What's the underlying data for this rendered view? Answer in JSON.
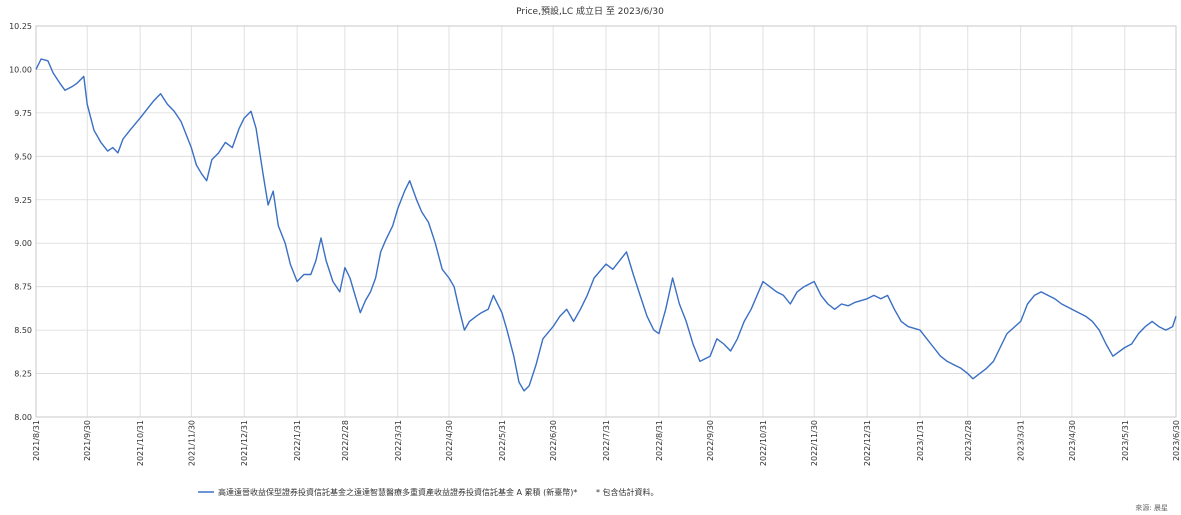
{
  "chart_data": {
    "type": "line",
    "title": "Price,預設,LC 成立日 至 2023/6/30",
    "xlabel": "",
    "ylabel": "",
    "ylim": [
      8.0,
      10.25
    ],
    "yticks": [
      "8.00",
      "8.25",
      "8.50",
      "8.75",
      "9.00",
      "9.25",
      "9.50",
      "9.75",
      "10.00",
      "10.25"
    ],
    "xlim": [
      "2021/8/31",
      "2023/6/30"
    ],
    "xticks": [
      "2021/8/31",
      "2021/9/30",
      "2021/10/31",
      "2021/11/30",
      "2021/12/31",
      "2022/1/31",
      "2022/2/28",
      "2022/3/31",
      "2022/4/30",
      "2022/5/31",
      "2022/6/30",
      "2022/7/31",
      "2022/8/31",
      "2022/9/30",
      "2022/10/31",
      "2022/11/30",
      "2022/12/31",
      "2023/1/31",
      "2023/2/28",
      "2023/3/31",
      "2023/4/30",
      "2023/5/31",
      "2023/6/30"
    ],
    "grid": true,
    "legend_position": "bottom",
    "series": [
      {
        "name": "高達遠晉收益保型證券投資信託基金之遠達智慧醫療多重資產收益證券投資信託基金 A 累積 (新臺幣)*",
        "color": "#3a6fc4",
        "points": [
          [
            "2021/8/31",
            10.0
          ],
          [
            "2021/9/3",
            10.06
          ],
          [
            "2021/9/7",
            10.05
          ],
          [
            "2021/9/10",
            9.98
          ],
          [
            "2021/9/14",
            9.92
          ],
          [
            "2021/9/17",
            9.88
          ],
          [
            "2021/9/21",
            9.9
          ],
          [
            "2021/9/24",
            9.92
          ],
          [
            "2021/9/28",
            9.96
          ],
          [
            "2021/9/30",
            9.8
          ],
          [
            "2021/10/4",
            9.65
          ],
          [
            "2021/10/8",
            9.58
          ],
          [
            "2021/10/12",
            9.53
          ],
          [
            "2021/10/15",
            9.55
          ],
          [
            "2021/10/18",
            9.52
          ],
          [
            "2021/10/21",
            9.6
          ],
          [
            "2021/10/25",
            9.65
          ],
          [
            "2021/10/31",
            9.72
          ],
          [
            "2021/11/4",
            9.77
          ],
          [
            "2021/11/8",
            9.82
          ],
          [
            "2021/11/12",
            9.86
          ],
          [
            "2021/11/16",
            9.8
          ],
          [
            "2021/11/20",
            9.76
          ],
          [
            "2021/11/24",
            9.7
          ],
          [
            "2021/11/30",
            9.55
          ],
          [
            "2021/12/3",
            9.45
          ],
          [
            "2021/12/6",
            9.4
          ],
          [
            "2021/12/9",
            9.36
          ],
          [
            "2021/12/12",
            9.48
          ],
          [
            "2021/12/16",
            9.52
          ],
          [
            "2021/12/20",
            9.58
          ],
          [
            "2021/12/24",
            9.55
          ],
          [
            "2021/12/28",
            9.66
          ],
          [
            "2021/12/31",
            9.72
          ],
          [
            "2022/1/4",
            9.76
          ],
          [
            "2022/1/7",
            9.66
          ],
          [
            "2022/1/11",
            9.4
          ],
          [
            "2022/1/14",
            9.22
          ],
          [
            "2022/1/17",
            9.3
          ],
          [
            "2022/1/20",
            9.1
          ],
          [
            "2022/1/24",
            9.0
          ],
          [
            "2022/1/27",
            8.88
          ],
          [
            "2022/1/31",
            8.78
          ],
          [
            "2022/2/4",
            8.82
          ],
          [
            "2022/2/8",
            8.82
          ],
          [
            "2022/2/11",
            8.9
          ],
          [
            "2022/2/14",
            9.03
          ],
          [
            "2022/2/17",
            8.9
          ],
          [
            "2022/2/21",
            8.78
          ],
          [
            "2022/2/25",
            8.72
          ],
          [
            "2022/2/28",
            8.86
          ],
          [
            "2022/3/3",
            8.8
          ],
          [
            "2022/3/6",
            8.7
          ],
          [
            "2022/3/9",
            8.6
          ],
          [
            "2022/3/12",
            8.67
          ],
          [
            "2022/3/15",
            8.72
          ],
          [
            "2022/3/18",
            8.8
          ],
          [
            "2022/3/21",
            8.95
          ],
          [
            "2022/3/24",
            9.02
          ],
          [
            "2022/3/28",
            9.1
          ],
          [
            "2022/3/31",
            9.2
          ],
          [
            "2022/4/4",
            9.3
          ],
          [
            "2022/4/7",
            9.36
          ],
          [
            "2022/4/11",
            9.25
          ],
          [
            "2022/4/14",
            9.18
          ],
          [
            "2022/4/18",
            9.12
          ],
          [
            "2022/4/22",
            9.0
          ],
          [
            "2022/4/26",
            8.85
          ],
          [
            "2022/4/30",
            8.8
          ],
          [
            "2022/5/3",
            8.75
          ],
          [
            "2022/5/6",
            8.62
          ],
          [
            "2022/5/9",
            8.5
          ],
          [
            "2022/5/12",
            8.55
          ],
          [
            "2022/5/16",
            8.58
          ],
          [
            "2022/5/19",
            8.6
          ],
          [
            "2022/5/23",
            8.62
          ],
          [
            "2022/5/26",
            8.7
          ],
          [
            "2022/5/31",
            8.6
          ],
          [
            "2022/6/3",
            8.5
          ],
          [
            "2022/6/7",
            8.35
          ],
          [
            "2022/6/10",
            8.2
          ],
          [
            "2022/6/13",
            8.15
          ],
          [
            "2022/6/16",
            8.18
          ],
          [
            "2022/6/20",
            8.3
          ],
          [
            "2022/6/24",
            8.45
          ],
          [
            "2022/6/30",
            8.52
          ],
          [
            "2022/7/4",
            8.58
          ],
          [
            "2022/7/8",
            8.62
          ],
          [
            "2022/7/12",
            8.55
          ],
          [
            "2022/7/16",
            8.62
          ],
          [
            "2022/7/20",
            8.7
          ],
          [
            "2022/7/24",
            8.8
          ],
          [
            "2022/7/31",
            8.88
          ],
          [
            "2022/8/4",
            8.85
          ],
          [
            "2022/8/8",
            8.9
          ],
          [
            "2022/8/12",
            8.95
          ],
          [
            "2022/8/16",
            8.82
          ],
          [
            "2022/8/20",
            8.7
          ],
          [
            "2022/8/24",
            8.58
          ],
          [
            "2022/8/28",
            8.5
          ],
          [
            "2022/8/31",
            8.48
          ],
          [
            "2022/9/4",
            8.62
          ],
          [
            "2022/9/8",
            8.8
          ],
          [
            "2022/9/12",
            8.65
          ],
          [
            "2022/9/16",
            8.55
          ],
          [
            "2022/9/20",
            8.42
          ],
          [
            "2022/9/24",
            8.32
          ],
          [
            "2022/9/30",
            8.35
          ],
          [
            "2022/10/4",
            8.45
          ],
          [
            "2022/10/8",
            8.42
          ],
          [
            "2022/10/12",
            8.38
          ],
          [
            "2022/10/16",
            8.45
          ],
          [
            "2022/10/20",
            8.55
          ],
          [
            "2022/10/24",
            8.62
          ],
          [
            "2022/10/31",
            8.78
          ],
          [
            "2022/11/4",
            8.75
          ],
          [
            "2022/11/8",
            8.72
          ],
          [
            "2022/11/12",
            8.7
          ],
          [
            "2022/11/16",
            8.65
          ],
          [
            "2022/11/20",
            8.72
          ],
          [
            "2022/11/24",
            8.75
          ],
          [
            "2022/11/30",
            8.78
          ],
          [
            "2022/12/4",
            8.7
          ],
          [
            "2022/12/8",
            8.65
          ],
          [
            "2022/12/12",
            8.62
          ],
          [
            "2022/12/16",
            8.65
          ],
          [
            "2022/12/20",
            8.64
          ],
          [
            "2022/12/24",
            8.66
          ],
          [
            "2022/12/31",
            8.68
          ],
          [
            "2023/1/4",
            8.7
          ],
          [
            "2023/1/8",
            8.68
          ],
          [
            "2023/1/12",
            8.7
          ],
          [
            "2023/1/16",
            8.62
          ],
          [
            "2023/1/20",
            8.55
          ],
          [
            "2023/1/24",
            8.52
          ],
          [
            "2023/1/31",
            8.5
          ],
          [
            "2023/2/4",
            8.45
          ],
          [
            "2023/2/8",
            8.4
          ],
          [
            "2023/2/12",
            8.35
          ],
          [
            "2023/2/16",
            8.32
          ],
          [
            "2023/2/20",
            8.3
          ],
          [
            "2023/2/24",
            8.28
          ],
          [
            "2023/2/28",
            8.25
          ],
          [
            "2023/3/3",
            8.22
          ],
          [
            "2023/3/7",
            8.25
          ],
          [
            "2023/3/11",
            8.28
          ],
          [
            "2023/3/15",
            8.32
          ],
          [
            "2023/3/19",
            8.4
          ],
          [
            "2023/3/23",
            8.48
          ],
          [
            "2023/3/31",
            8.55
          ],
          [
            "2023/4/4",
            8.65
          ],
          [
            "2023/4/8",
            8.7
          ],
          [
            "2023/4/12",
            8.72
          ],
          [
            "2023/4/16",
            8.7
          ],
          [
            "2023/4/20",
            8.68
          ],
          [
            "2023/4/24",
            8.65
          ],
          [
            "2023/4/30",
            8.62
          ],
          [
            "2023/5/4",
            8.6
          ],
          [
            "2023/5/8",
            8.58
          ],
          [
            "2023/5/12",
            8.55
          ],
          [
            "2023/5/16",
            8.5
          ],
          [
            "2023/5/20",
            8.42
          ],
          [
            "2023/5/24",
            8.35
          ],
          [
            "2023/5/31",
            8.4
          ],
          [
            "2023/6/4",
            8.42
          ],
          [
            "2023/6/8",
            8.48
          ],
          [
            "2023/6/12",
            8.52
          ],
          [
            "2023/6/16",
            8.55
          ],
          [
            "2023/6/20",
            8.52
          ],
          [
            "2023/6/24",
            8.5
          ],
          [
            "2023/6/28",
            8.52
          ],
          [
            "2023/6/30",
            8.58
          ]
        ]
      }
    ],
    "legend_note": "* 包含估計資料。",
    "source": "來源: 晨星"
  }
}
